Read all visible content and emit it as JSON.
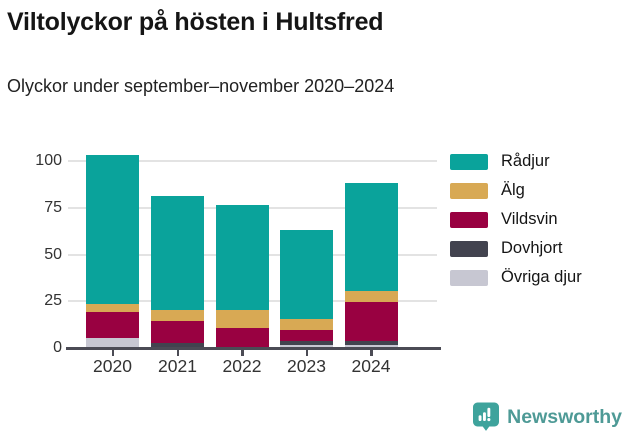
{
  "header": {
    "title": "Viltolyckor på hösten i Hultsfred",
    "subtitle": "Olyckor under september–november 2020–2024"
  },
  "chart_data": {
    "type": "bar",
    "stacked": true,
    "title": "Viltolyckor på hösten i Hultsfred",
    "subtitle": "Olyckor under september–november 2020–2024",
    "categories": [
      "2020",
      "2021",
      "2022",
      "2023",
      "2024"
    ],
    "series": [
      {
        "name": "Rådjur",
        "color": "#0aa39b",
        "values": [
          80,
          61,
          56,
          48,
          58
        ]
      },
      {
        "name": "Älg",
        "color": "#d8a954",
        "values": [
          4,
          6,
          10,
          6,
          6
        ]
      },
      {
        "name": "Vildsvin",
        "color": "#990141",
        "values": [
          14,
          12,
          10,
          6,
          21
        ]
      },
      {
        "name": "Dovhjort",
        "color": "#42434f",
        "values": [
          0,
          2,
          0,
          2,
          2
        ]
      },
      {
        "name": "Övriga djur",
        "color": "#c7c7d2",
        "values": [
          5,
          0,
          0,
          1,
          1
        ]
      }
    ],
    "totals": [
      103,
      81,
      76,
      63,
      88
    ],
    "yticks": [
      0,
      25,
      50,
      75,
      100
    ],
    "ylim": [
      0,
      107
    ],
    "xlabel": "",
    "ylabel": "",
    "grid": true,
    "legend_position": "right",
    "stack_order_bottom_to_top": [
      "Övriga djur",
      "Dovhjort",
      "Vildsvin",
      "Älg",
      "Rådjur"
    ]
  },
  "colors": {
    "accent_teal": "#0aa39b",
    "gold": "#d8a954",
    "crimson": "#990141",
    "dark_gray": "#42434f",
    "light_gray": "#c7c7d2",
    "gridline": "#e3e3e3",
    "axis": "#4b4b55",
    "brand_teal": "#4e9a96"
  },
  "footer": {
    "brand": "Newsworthy"
  }
}
